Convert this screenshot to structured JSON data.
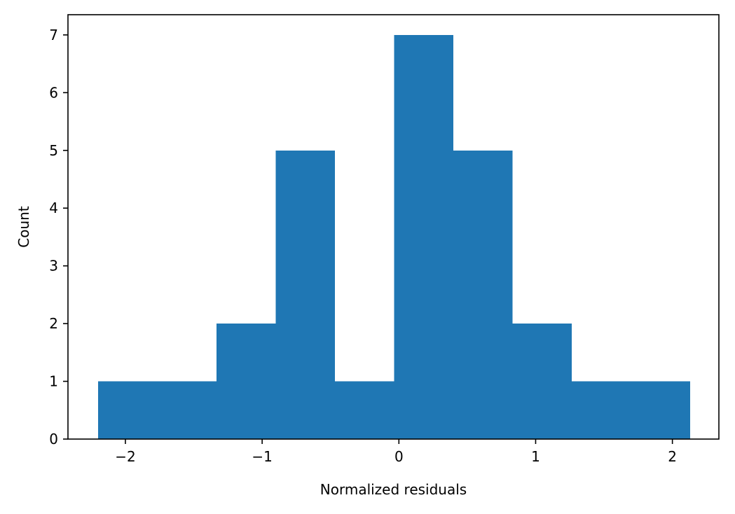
{
  "chart_data": {
    "type": "bar",
    "title": "",
    "xlabel": "Normalized residuals",
    "ylabel": "Count",
    "xlim": [
      -2.42,
      2.34
    ],
    "ylim": [
      0,
      7.35
    ],
    "xticks": [
      -2,
      -1,
      0,
      1,
      2
    ],
    "xtick_labels": [
      "−2",
      "−1",
      "0",
      "1",
      "2"
    ],
    "yticks": [
      0,
      1,
      2,
      3,
      4,
      5,
      6,
      7
    ],
    "ytick_labels": [
      "0",
      "1",
      "2",
      "3",
      "4",
      "5",
      "6",
      "7"
    ],
    "bin_edges": [
      -2.2,
      -1.767,
      -1.334,
      -0.901,
      -0.468,
      -0.035,
      0.398,
      0.831,
      1.264,
      1.697,
      2.13
    ],
    "counts": [
      1,
      1,
      2,
      5,
      1,
      7,
      5,
      2,
      1,
      1
    ],
    "bar_color": "#1f77b4",
    "grid": false,
    "legend": "none"
  }
}
